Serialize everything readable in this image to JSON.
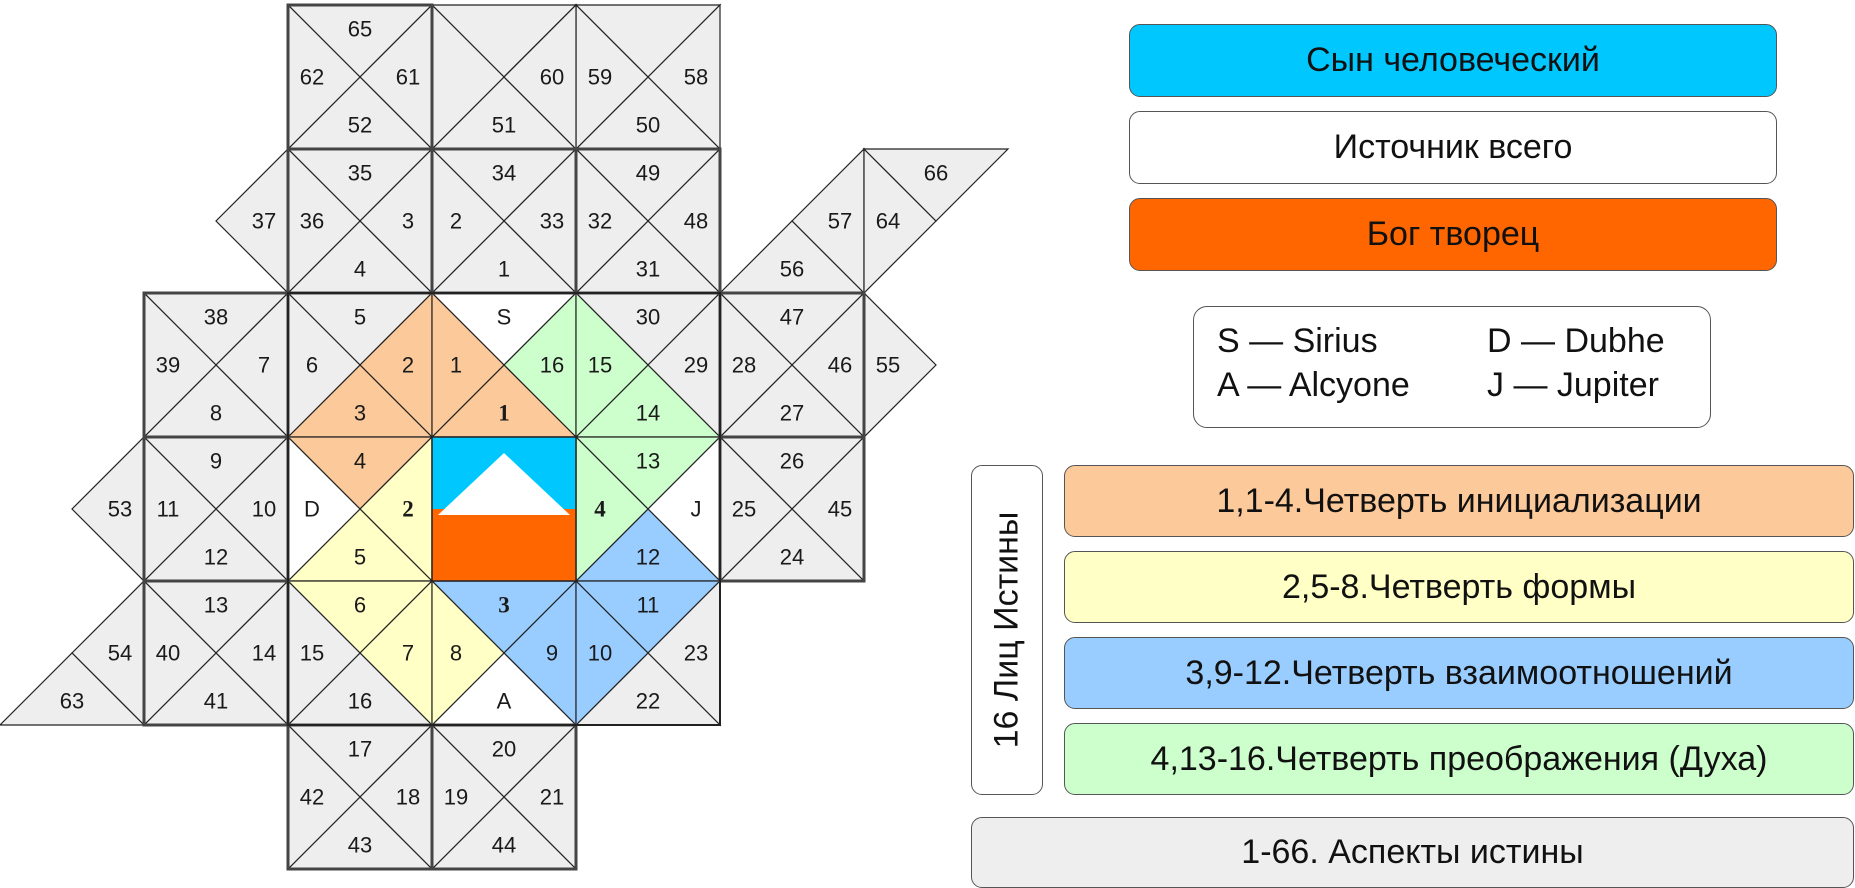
{
  "legend": {
    "son_of_man": {
      "label": "Сын человеческий",
      "color": "#00c8ff"
    },
    "source_of_all": {
      "label": "Источник всего",
      "color": "#ffffff"
    },
    "god_creator": {
      "label": "Бог творец",
      "color": "#ff6600"
    }
  },
  "stars": {
    "s": "S — Sirius",
    "d": "D — Dubhe",
    "a": "A — Alcyone",
    "j": "J — Jupiter"
  },
  "faces_label": "16 Лиц Истины",
  "quarters": [
    {
      "label": "1,1-4.Четверть инициализации",
      "color": "#fbc99a"
    },
    {
      "label": "2,5-8.Четверть формы",
      "color": "#ffffc6"
    },
    {
      "label": "3,9-12.Четверть взаимоотношений",
      "color": "#99ccff"
    },
    {
      "label": "4,13-16.Четверть преображения (Духа)",
      "color": "#ccffcc"
    }
  ],
  "aspects": {
    "label": "1-66. Аспекты истины",
    "color": "#eeeeee"
  },
  "grid_colors": {
    "gray": "#eeeeee",
    "white": "#ffffff"
  },
  "cells": [
    {
      "i": 2,
      "j": 0,
      "t": [
        "65",
        "61",
        "52",
        "62"
      ]
    },
    {
      "i": 3,
      "j": 0,
      "t": [
        null,
        null,
        "51",
        null
      ]
    },
    {
      "i": 4,
      "j": 0,
      "t": [
        null,
        "58",
        "50",
        "59"
      ]
    },
    {
      "i": 2,
      "j": 1,
      "t": [
        "35",
        "3",
        "4",
        "36"
      ]
    },
    {
      "i": 3,
      "j": 1,
      "t": [
        "34",
        "33",
        "1",
        "2"
      ]
    },
    {
      "i": 4,
      "j": 1,
      "t": [
        "49",
        "48",
        "31",
        "32"
      ]
    },
    {
      "i": 1,
      "j": 2,
      "t": [
        "38",
        "7",
        "8",
        "39"
      ]
    },
    {
      "i": 2,
      "j": 2,
      "t": [
        "5",
        "2",
        "3",
        "6"
      ]
    },
    {
      "i": 3,
      "j": 2,
      "t": [
        "S",
        "16",
        "1",
        "1"
      ]
    },
    {
      "i": 4,
      "j": 2,
      "t": [
        "30",
        "29",
        "14",
        "15"
      ]
    },
    {
      "i": 5,
      "j": 2,
      "t": [
        "47",
        "46",
        "27",
        "28"
      ]
    },
    {
      "i": 1,
      "j": 3,
      "t": [
        "9",
        "10",
        "12",
        "11"
      ]
    },
    {
      "i": 2,
      "j": 3,
      "t": [
        "4",
        "2",
        "5",
        "D"
      ]
    },
    {
      "i": 4,
      "j": 3,
      "t": [
        "13",
        "J",
        "12",
        "4"
      ]
    },
    {
      "i": 5,
      "j": 3,
      "t": [
        "26",
        "45",
        "24",
        "25"
      ]
    },
    {
      "i": 1,
      "j": 4,
      "t": [
        "13",
        "14",
        "41",
        "40"
      ]
    },
    {
      "i": 2,
      "j": 4,
      "t": [
        "6",
        "7",
        "16",
        "15"
      ]
    },
    {
      "i": 3,
      "j": 4,
      "t": [
        "3",
        "9",
        "A",
        "8"
      ]
    },
    {
      "i": 4,
      "j": 4,
      "t": [
        "11",
        "23",
        "22",
        "10"
      ]
    },
    {
      "i": 2,
      "j": 5,
      "t": [
        "17",
        "18",
        "43",
        "42"
      ]
    },
    {
      "i": 3,
      "j": 5,
      "t": [
        "20",
        "21",
        "44",
        "19"
      ]
    }
  ],
  "partial_cells": [
    {
      "i": 1,
      "j": 1,
      "t": [
        null,
        null,
        null,
        "37"
      ]
    },
    {
      "i": 0,
      "j": 3,
      "t": [
        null,
        null,
        null,
        "53"
      ]
    },
    {
      "i": 0,
      "j": 4,
      "t": [
        null,
        "54",
        null,
        "63"
      ]
    },
    {
      "i": 6,
      "j": 2,
      "t": [
        null,
        null,
        null,
        "55"
      ]
    },
    {
      "i": 5,
      "j": 1,
      "t": [
        null,
        "57",
        null,
        "56"
      ]
    },
    {
      "i": 6,
      "j": 1,
      "t": [
        "66",
        null,
        null,
        "64"
      ]
    },
    {
      "i": 3,
      "j": 0,
      "t": [
        null,
        "60",
        null,
        null
      ]
    }
  ]
}
